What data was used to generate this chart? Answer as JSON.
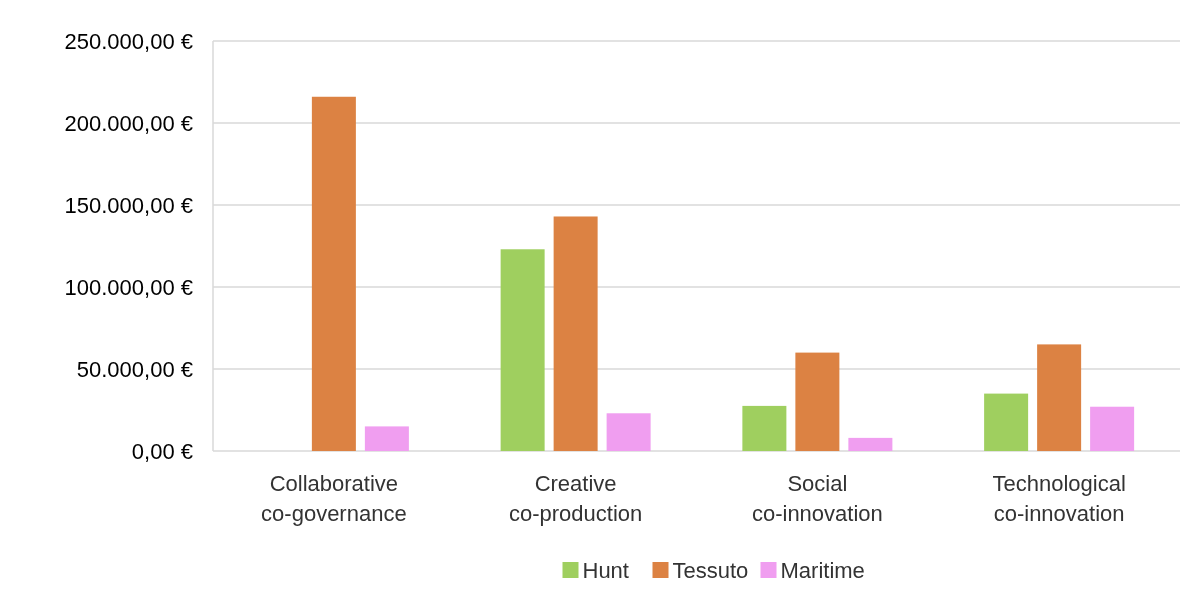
{
  "chart_data": {
    "type": "bar",
    "categories": [
      "Collaborative co-governance",
      "Creative co-production",
      "Social co-innovation",
      "Technological co-innovation"
    ],
    "series": [
      {
        "name": "Hunt",
        "color": "#9fcf5f",
        "values": [
          null,
          123000,
          27500,
          35000
        ]
      },
      {
        "name": "Tessuto",
        "color": "#dc8243",
        "values": [
          216000,
          143000,
          60000,
          65000
        ]
      },
      {
        "name": "Maritime",
        "color": "#f09ef0",
        "values": [
          15000,
          23000,
          8000,
          27000
        ]
      }
    ],
    "ylim": [
      0,
      250000
    ],
    "yticks": [
      {
        "value": 0,
        "label": "0,00 €"
      },
      {
        "value": 50000,
        "label": "50.000,00 €"
      },
      {
        "value": 100000,
        "label": "100.000,00 €"
      },
      {
        "value": 150000,
        "label": "150.000,00 €"
      },
      {
        "value": 200000,
        "label": "200.000,00 €"
      },
      {
        "value": 250000,
        "label": "250.000,00 €"
      }
    ],
    "grid": "y",
    "legend": "bottom"
  }
}
